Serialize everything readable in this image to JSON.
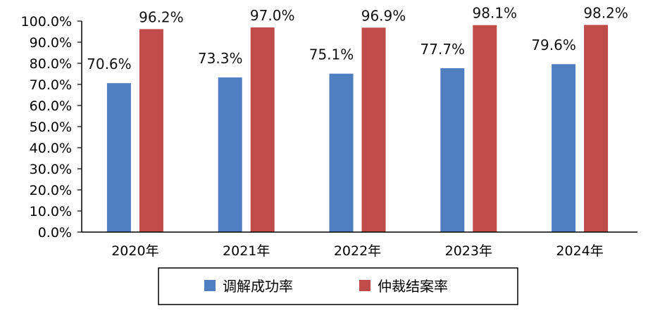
{
  "chart_data": {
    "type": "bar",
    "categories": [
      "2020年",
      "2021年",
      "2022年",
      "2023年",
      "2024年"
    ],
    "series": [
      {
        "name": "调解成功率",
        "values": [
          70.6,
          73.3,
          75.1,
          77.7,
          79.6
        ],
        "labels": [
          "70.6%",
          "73.3%",
          "75.1%",
          "77.7%",
          "79.6%"
        ],
        "color": "#4f7fc1"
      },
      {
        "name": "仲裁结案率",
        "values": [
          96.2,
          97.0,
          96.9,
          98.1,
          98.2
        ],
        "labels": [
          "96.2%",
          "97.0%",
          "96.9%",
          "98.1%",
          "98.2%"
        ],
        "color": "#bf4b4a"
      }
    ],
    "ylim": [
      0,
      100
    ],
    "yticks": [
      "0.0%",
      "10.0%",
      "20.0%",
      "30.0%",
      "40.0%",
      "50.0%",
      "60.0%",
      "70.0%",
      "80.0%",
      "90.0%",
      "100.0%"
    ],
    "legend": "bottom",
    "grid": false
  }
}
